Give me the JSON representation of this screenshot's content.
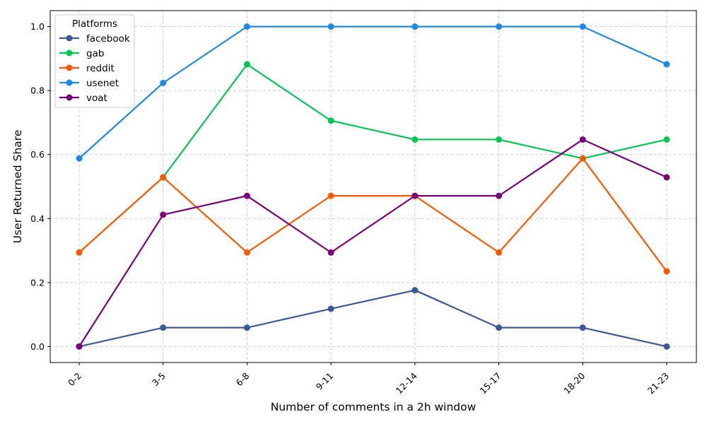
{
  "chart_data": {
    "type": "line",
    "title": "",
    "xlabel": "Number of comments in a 2h window",
    "ylabel": "User Returned Share",
    "categories": [
      "0-2",
      "3-5",
      "6-8",
      "9-11",
      "12-14",
      "15-17",
      "18-20",
      "21-23"
    ],
    "ylim": [
      -0.05,
      1.05
    ],
    "yticks": [
      0.0,
      0.2,
      0.4,
      0.6,
      0.8,
      1.0
    ],
    "ytick_labels": [
      "0.0",
      "0.2",
      "0.4",
      "0.6",
      "0.8",
      "1.0"
    ],
    "grid": true,
    "legend": {
      "title": "Platforms",
      "placement": "top-left"
    },
    "series": [
      {
        "name": "facebook",
        "color": "#3b5998",
        "values": [
          0.0,
          0.059,
          0.059,
          0.118,
          0.176,
          0.059,
          0.059,
          0.0
        ]
      },
      {
        "name": "gab",
        "color": "#00c853",
        "values": [
          0.294,
          0.529,
          0.882,
          0.706,
          0.647,
          0.647,
          0.588,
          0.647
        ]
      },
      {
        "name": "reddit",
        "color": "#ff5700",
        "values": [
          0.294,
          0.529,
          0.294,
          0.471,
          0.471,
          0.294,
          0.588,
          0.235
        ]
      },
      {
        "name": "usenet",
        "color": "#1e88e5",
        "values": [
          0.588,
          0.824,
          1.0,
          1.0,
          1.0,
          1.0,
          1.0,
          0.882
        ]
      },
      {
        "name": "voat",
        "color": "#7b007b",
        "values": [
          0.0,
          0.412,
          0.471,
          0.294,
          0.471,
          0.471,
          0.647,
          0.529
        ]
      }
    ]
  }
}
